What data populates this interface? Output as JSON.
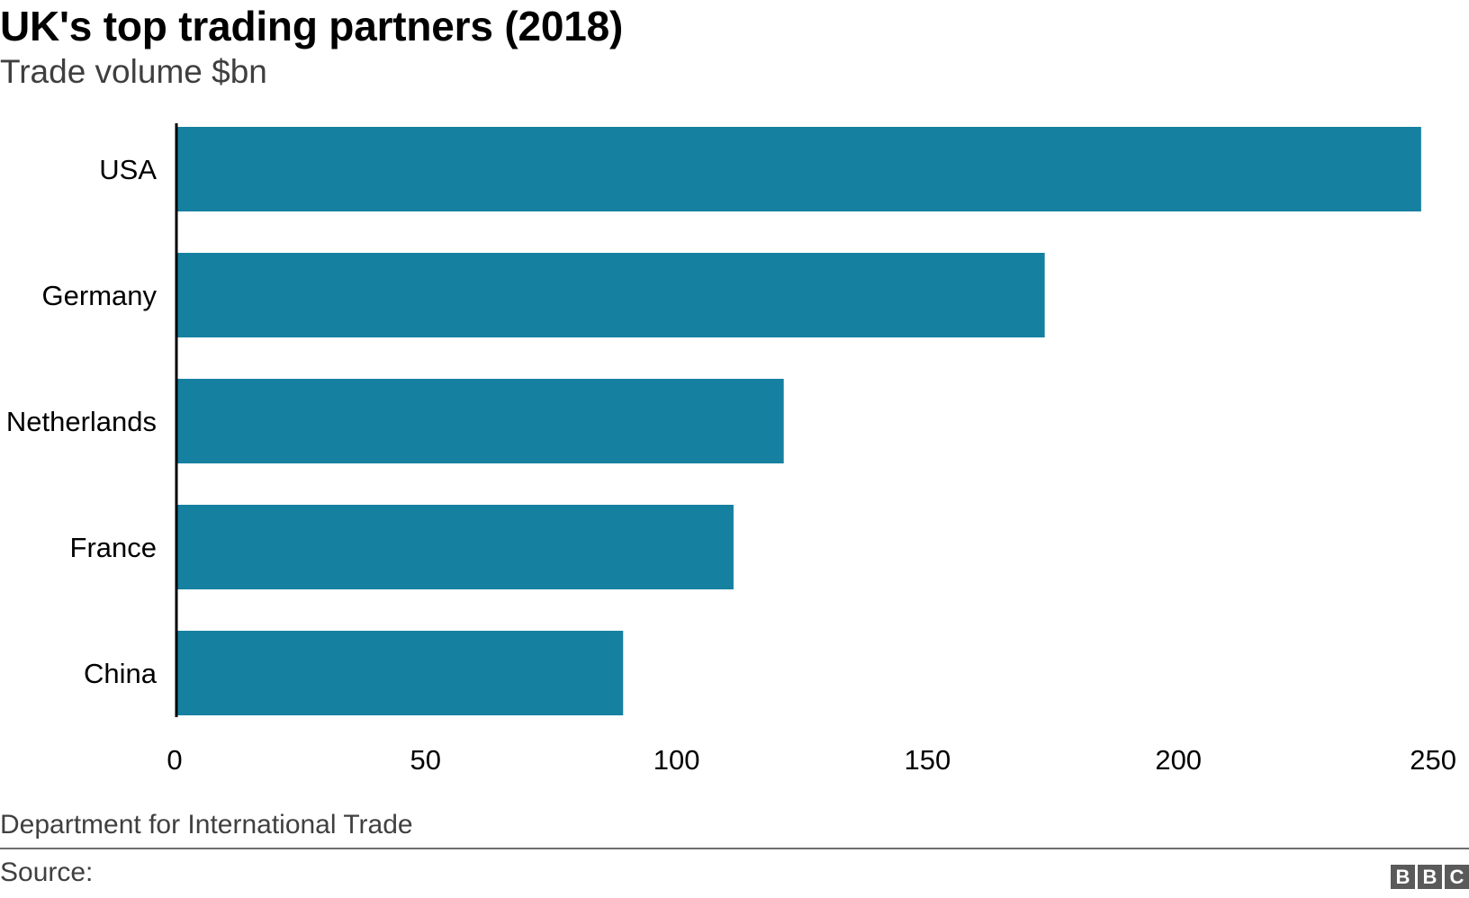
{
  "title": "UK's top trading partners (2018)",
  "subtitle": "Trade volume $bn",
  "footer": {
    "note": "Department for International Trade",
    "source_label": "Source:"
  },
  "logo": {
    "letters": [
      "B",
      "B",
      "C"
    ],
    "text": "BBC"
  },
  "colors": {
    "bar": "#1680a1",
    "axis": "#000000",
    "rule": "#6e6e6e"
  },
  "chart_data": {
    "type": "bar",
    "orientation": "horizontal",
    "title": "UK's top trading partners (2018)",
    "subtitle": "Trade volume $bn",
    "xlabel": "",
    "ylabel": "",
    "categories": [
      "USA",
      "Germany",
      "Netherlands",
      "France",
      "China"
    ],
    "values": [
      248,
      173,
      121,
      111,
      89
    ],
    "xlim": [
      0,
      250
    ],
    "xticks": [
      0,
      50,
      100,
      150,
      200,
      250
    ],
    "grid": false,
    "legend": "none"
  }
}
